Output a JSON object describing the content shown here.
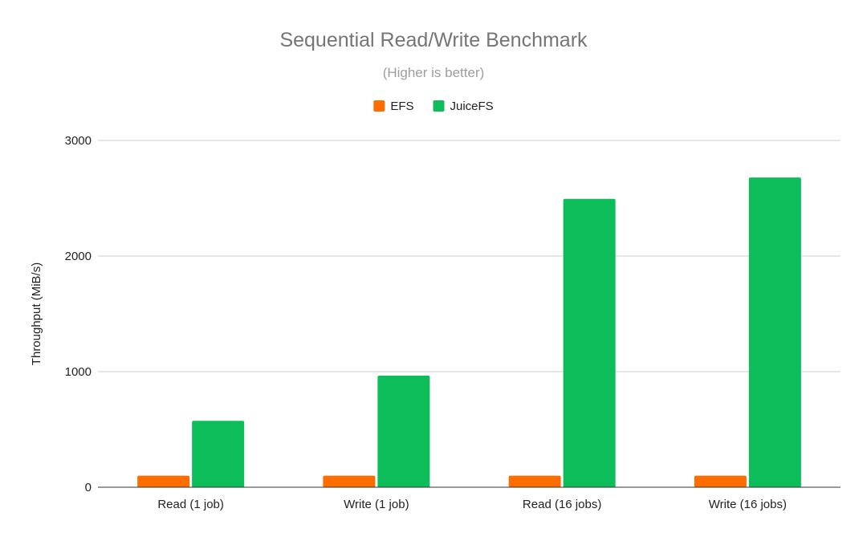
{
  "chart_data": {
    "type": "bar",
    "title": "Sequential Read/Write Benchmark",
    "subtitle": "(Higher is better)",
    "xlabel": "",
    "ylabel": "Throughput (MiB/s)",
    "categories": [
      "Read (1 job)",
      "Write (1 job)",
      "Read (16 jobs)",
      "Write (16 jobs)"
    ],
    "series": [
      {
        "name": "EFS",
        "color": "#ff6d01",
        "values": [
          100,
          100,
          100,
          100
        ]
      },
      {
        "name": "JuiceFS",
        "color": "#0cbd59",
        "values": [
          575,
          965,
          2495,
          2680
        ]
      }
    ],
    "ylim": [
      0,
      3000
    ],
    "yticks": [
      0,
      1000,
      2000,
      3000
    ],
    "grid": true,
    "legend_position": "top-center"
  }
}
